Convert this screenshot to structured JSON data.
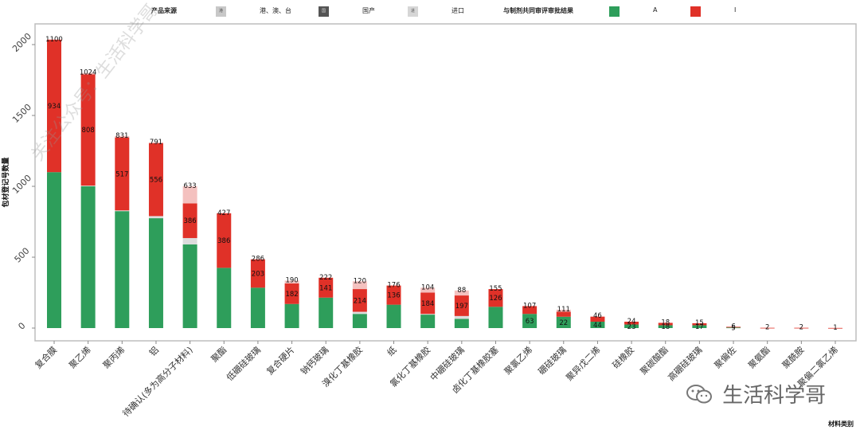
{
  "legend": {
    "source_title": "产品来源",
    "source_items": [
      {
        "label": "港、澳、台",
        "color": "#c8c8c8",
        "swatch_text": "港"
      },
      {
        "label": "国产",
        "color": "#555555",
        "swatch_text": "国"
      },
      {
        "label": "进口",
        "color": "#d6d6d6",
        "swatch_text": "进"
      }
    ],
    "result_title": "与制剂共同审评审批结果",
    "result_items": [
      {
        "label": "A",
        "color": "#2e9e5b"
      },
      {
        "label": "I",
        "color": "#e03128"
      }
    ]
  },
  "watermark": {
    "diagonal": "关注公众号：生活科学哥",
    "brand": "生活科学哥"
  },
  "chart_data": {
    "type": "bar",
    "stacked": true,
    "xlabel": "材料类别",
    "ylabel": "包材登记号数量",
    "ylim": [
      0,
      2100
    ],
    "yticks": [
      0,
      500,
      1000,
      1500,
      2000
    ],
    "grid": false,
    "legend_position": "top",
    "categories": [
      "复合膜",
      "聚乙烯",
      "聚丙烯",
      "铝",
      "待确认(多为高分子材料)",
      "聚酯",
      "低硼硅玻璃",
      "复合硬片",
      "钠钙玻璃",
      "溴化丁基橡胶",
      "纸",
      "氯化丁基橡胶",
      "中硼硅玻璃",
      "卤化丁基橡胶塞",
      "聚氯乙烯",
      "硼硅玻璃",
      "聚异戊二烯",
      "硅橡胶",
      "聚碳酸酯",
      "高硼硅玻璃",
      "聚偏佐",
      "聚氨酯",
      "聚酰胺",
      "聚偏二氯乙烯"
    ],
    "series": [
      {
        "name": "A",
        "color": "#2e9e5b",
        "values": [
          1100,
          1000,
          825,
          775,
          590,
          425,
          285,
          170,
          215,
          100,
          165,
          95,
          65,
          150,
          100,
          80,
          45,
          25,
          20,
          20,
          4,
          0,
          0,
          0
        ]
      },
      {
        "name": "",
        "color": "#dcdcdc",
        "values": [
          0,
          5,
          5,
          15,
          45,
          0,
          0,
          0,
          0,
          15,
          0,
          5,
          20,
          0,
          0,
          0,
          0,
          0,
          0,
          0,
          0,
          0,
          0,
          0
        ]
      },
      {
        "name": "I",
        "color": "#e03128",
        "values": [
          935,
          785,
          515,
          515,
          245,
          385,
          200,
          145,
          140,
          160,
          135,
          150,
          145,
          125,
          55,
          35,
          35,
          20,
          17,
          14,
          5,
          2,
          2,
          1
        ]
      },
      {
        "name": "",
        "color": "#f4c1bf",
        "values": [
          0,
          10,
          10,
          5,
          120,
          0,
          0,
          20,
          0,
          55,
          0,
          35,
          35,
          0,
          0,
          15,
          5,
          0,
          0,
          0,
          0,
          0,
          0,
          0
        ]
      }
    ],
    "data_labels": {
      "top": [
        1100,
        1024,
        831,
        791,
        633,
        427,
        286,
        190,
        222,
        120,
        176,
        104,
        88,
        155,
        107,
        111,
        46,
        24,
        18,
        15,
        6,
        2,
        2,
        1
      ],
      "mid": [
        934,
        808,
        517,
        556,
        386,
        386,
        203,
        182,
        141,
        214,
        136,
        184,
        197,
        126,
        63,
        22,
        44,
        23,
        18,
        17,
        5,
        null,
        null,
        null
      ]
    }
  }
}
